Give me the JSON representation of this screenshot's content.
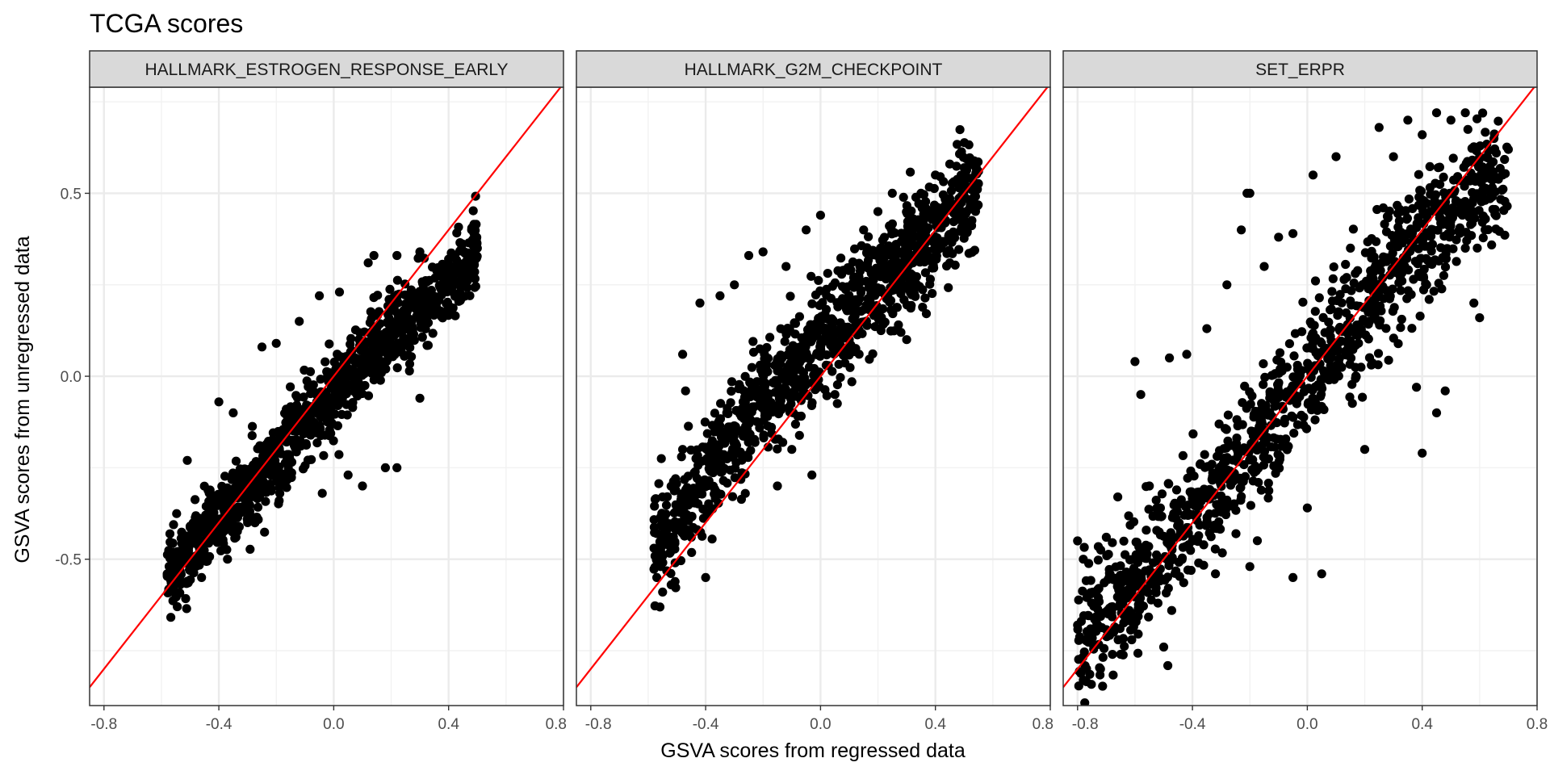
{
  "chart_data": {
    "type": "scatter",
    "title": "TCGA scores",
    "xlabel": "GSVA scores from regressed data",
    "ylabel": "GSVA scores from unregressed data",
    "xlim": [
      -0.85,
      0.8
    ],
    "ylim": [
      -0.9,
      0.79
    ],
    "x_ticks": [
      -0.8,
      -0.4,
      0.0,
      0.4,
      0.8
    ],
    "x_tick_labels": [
      "-0.8",
      "-0.4",
      "0.0",
      "0.4",
      "0.8"
    ],
    "y_ticks": [
      -0.5,
      0.0,
      0.5
    ],
    "y_tick_labels": [
      "-0.5",
      "0.0",
      "0.5"
    ],
    "grid": true,
    "reference_line": {
      "slope": 1,
      "intercept": 0,
      "color": "#ff0000"
    },
    "point_color": "#000000",
    "approx_points_per_panel": 1100,
    "panels": [
      {
        "name": "HALLMARK_ESTROGEN_RESPONSE_EARLY",
        "trend": {
          "x": [
            -0.58,
            -0.45,
            -0.3,
            -0.15,
            0.0,
            0.15,
            0.3,
            0.45,
            0.5
          ],
          "y": [
            -0.54,
            -0.44,
            -0.3,
            -0.17,
            -0.05,
            0.08,
            0.17,
            0.3,
            0.38
          ]
        },
        "points": [
          [
            -0.58,
            -0.54
          ],
          [
            -0.52,
            -0.51
          ],
          [
            -0.5,
            -0.41
          ],
          [
            -0.51,
            -0.23
          ],
          [
            -0.46,
            -0.55
          ],
          [
            -0.4,
            -0.07
          ],
          [
            -0.37,
            -0.5
          ],
          [
            -0.3,
            -0.4
          ],
          [
            -0.25,
            0.08
          ],
          [
            -0.2,
            0.09
          ],
          [
            -0.19,
            -0.34
          ],
          [
            -0.12,
            0.15
          ],
          [
            -0.05,
            0.22
          ],
          [
            -0.04,
            -0.32
          ],
          [
            0.02,
            0.23
          ],
          [
            0.05,
            -0.27
          ],
          [
            0.1,
            -0.3
          ],
          [
            0.18,
            -0.25
          ],
          [
            0.22,
            -0.25
          ],
          [
            0.14,
            0.33
          ],
          [
            0.22,
            0.33
          ],
          [
            0.3,
            0.34
          ],
          [
            0.3,
            -0.06
          ],
          [
            0.4,
            0.32
          ],
          [
            0.45,
            0.3
          ],
          [
            0.48,
            0.4
          ],
          [
            0.5,
            0.35
          ],
          [
            0.48,
            0.27
          ],
          [
            -0.35,
            -0.1
          ],
          [
            0.12,
            0.31
          ]
        ]
      },
      {
        "name": "HALLMARK_G2M_CHECKPOINT",
        "trend": {
          "x": [
            -0.58,
            -0.5,
            -0.4,
            -0.3,
            -0.2,
            -0.1,
            0.0,
            0.1,
            0.2,
            0.3,
            0.4,
            0.5,
            0.55
          ],
          "y": [
            -0.48,
            -0.4,
            -0.27,
            -0.15,
            -0.05,
            0.03,
            0.1,
            0.18,
            0.25,
            0.33,
            0.4,
            0.48,
            0.53
          ]
        },
        "points": [
          [
            -0.58,
            -0.47
          ],
          [
            -0.55,
            -0.33
          ],
          [
            -0.57,
            -0.55
          ],
          [
            -0.52,
            -0.57
          ],
          [
            -0.48,
            -0.2
          ],
          [
            -0.47,
            -0.04
          ],
          [
            -0.48,
            0.06
          ],
          [
            -0.42,
            0.2
          ],
          [
            -0.4,
            -0.55
          ],
          [
            -0.35,
            0.22
          ],
          [
            -0.3,
            0.25
          ],
          [
            -0.25,
            0.33
          ],
          [
            -0.2,
            0.34
          ],
          [
            -0.15,
            -0.3
          ],
          [
            -0.12,
            0.3
          ],
          [
            -0.1,
            -0.2
          ],
          [
            -0.05,
            0.4
          ],
          [
            0.0,
            0.44
          ],
          [
            -0.03,
            -0.27
          ],
          [
            0.05,
            -0.05
          ],
          [
            0.1,
            0.1
          ],
          [
            0.1,
            0.2
          ],
          [
            0.15,
            0.4
          ],
          [
            0.2,
            0.45
          ],
          [
            0.25,
            0.5
          ],
          [
            0.28,
            0.12
          ],
          [
            0.3,
            0.1
          ],
          [
            0.35,
            0.5
          ],
          [
            0.4,
            0.55
          ],
          [
            0.45,
            0.58
          ],
          [
            0.5,
            0.57
          ],
          [
            0.55,
            0.56
          ],
          [
            0.52,
            0.46
          ],
          [
            0.45,
            0.31
          ],
          [
            0.3,
            0.24
          ]
        ]
      },
      {
        "name": "SET_ERPR",
        "trend": {
          "x": [
            -0.8,
            -0.6,
            -0.4,
            -0.2,
            0.0,
            0.2,
            0.4,
            0.6,
            0.7
          ],
          "y": [
            -0.72,
            -0.57,
            -0.38,
            -0.2,
            0.0,
            0.2,
            0.38,
            0.5,
            0.58
          ]
        },
        "points": [
          [
            -0.78,
            -0.83
          ],
          [
            -0.8,
            -0.68
          ],
          [
            -0.8,
            -0.45
          ],
          [
            -0.78,
            -0.5
          ],
          [
            -0.72,
            -0.8
          ],
          [
            -0.7,
            -0.44
          ],
          [
            -0.66,
            -0.33
          ],
          [
            -0.65,
            -0.76
          ],
          [
            -0.6,
            0.04
          ],
          [
            -0.58,
            -0.05
          ],
          [
            -0.55,
            -0.3
          ],
          [
            -0.52,
            -0.62
          ],
          [
            -0.5,
            -0.74
          ],
          [
            -0.42,
            0.06
          ],
          [
            -0.4,
            -0.45
          ],
          [
            -0.35,
            0.13
          ],
          [
            -0.32,
            -0.54
          ],
          [
            -0.28,
            0.25
          ],
          [
            -0.23,
            0.4
          ],
          [
            -0.21,
            0.5
          ],
          [
            -0.2,
            0.5
          ],
          [
            -0.2,
            -0.52
          ],
          [
            -0.15,
            0.3
          ],
          [
            -0.1,
            0.38
          ],
          [
            -0.05,
            0.39
          ],
          [
            -0.05,
            -0.55
          ],
          [
            0.0,
            -0.36
          ],
          [
            0.02,
            0.55
          ],
          [
            0.05,
            -0.54
          ],
          [
            0.1,
            0.6
          ],
          [
            0.15,
            0.35
          ],
          [
            0.2,
            -0.2
          ],
          [
            0.25,
            0.68
          ],
          [
            0.3,
            0.6
          ],
          [
            0.35,
            0.7
          ],
          [
            0.4,
            0.66
          ],
          [
            0.45,
            0.72
          ],
          [
            0.5,
            0.7
          ],
          [
            0.55,
            0.72
          ],
          [
            0.55,
            0.35
          ],
          [
            0.6,
            0.6
          ],
          [
            0.62,
            0.43
          ],
          [
            0.65,
            0.65
          ],
          [
            0.68,
            0.55
          ],
          [
            0.7,
            0.62
          ],
          [
            0.58,
            0.2
          ],
          [
            0.45,
            -0.1
          ],
          [
            0.4,
            -0.21
          ],
          [
            0.6,
            0.16
          ],
          [
            0.38,
            -0.03
          ],
          [
            0.48,
            -0.04
          ],
          [
            -0.48,
            0.05
          ],
          [
            -0.75,
            -0.73
          ]
        ]
      }
    ]
  }
}
